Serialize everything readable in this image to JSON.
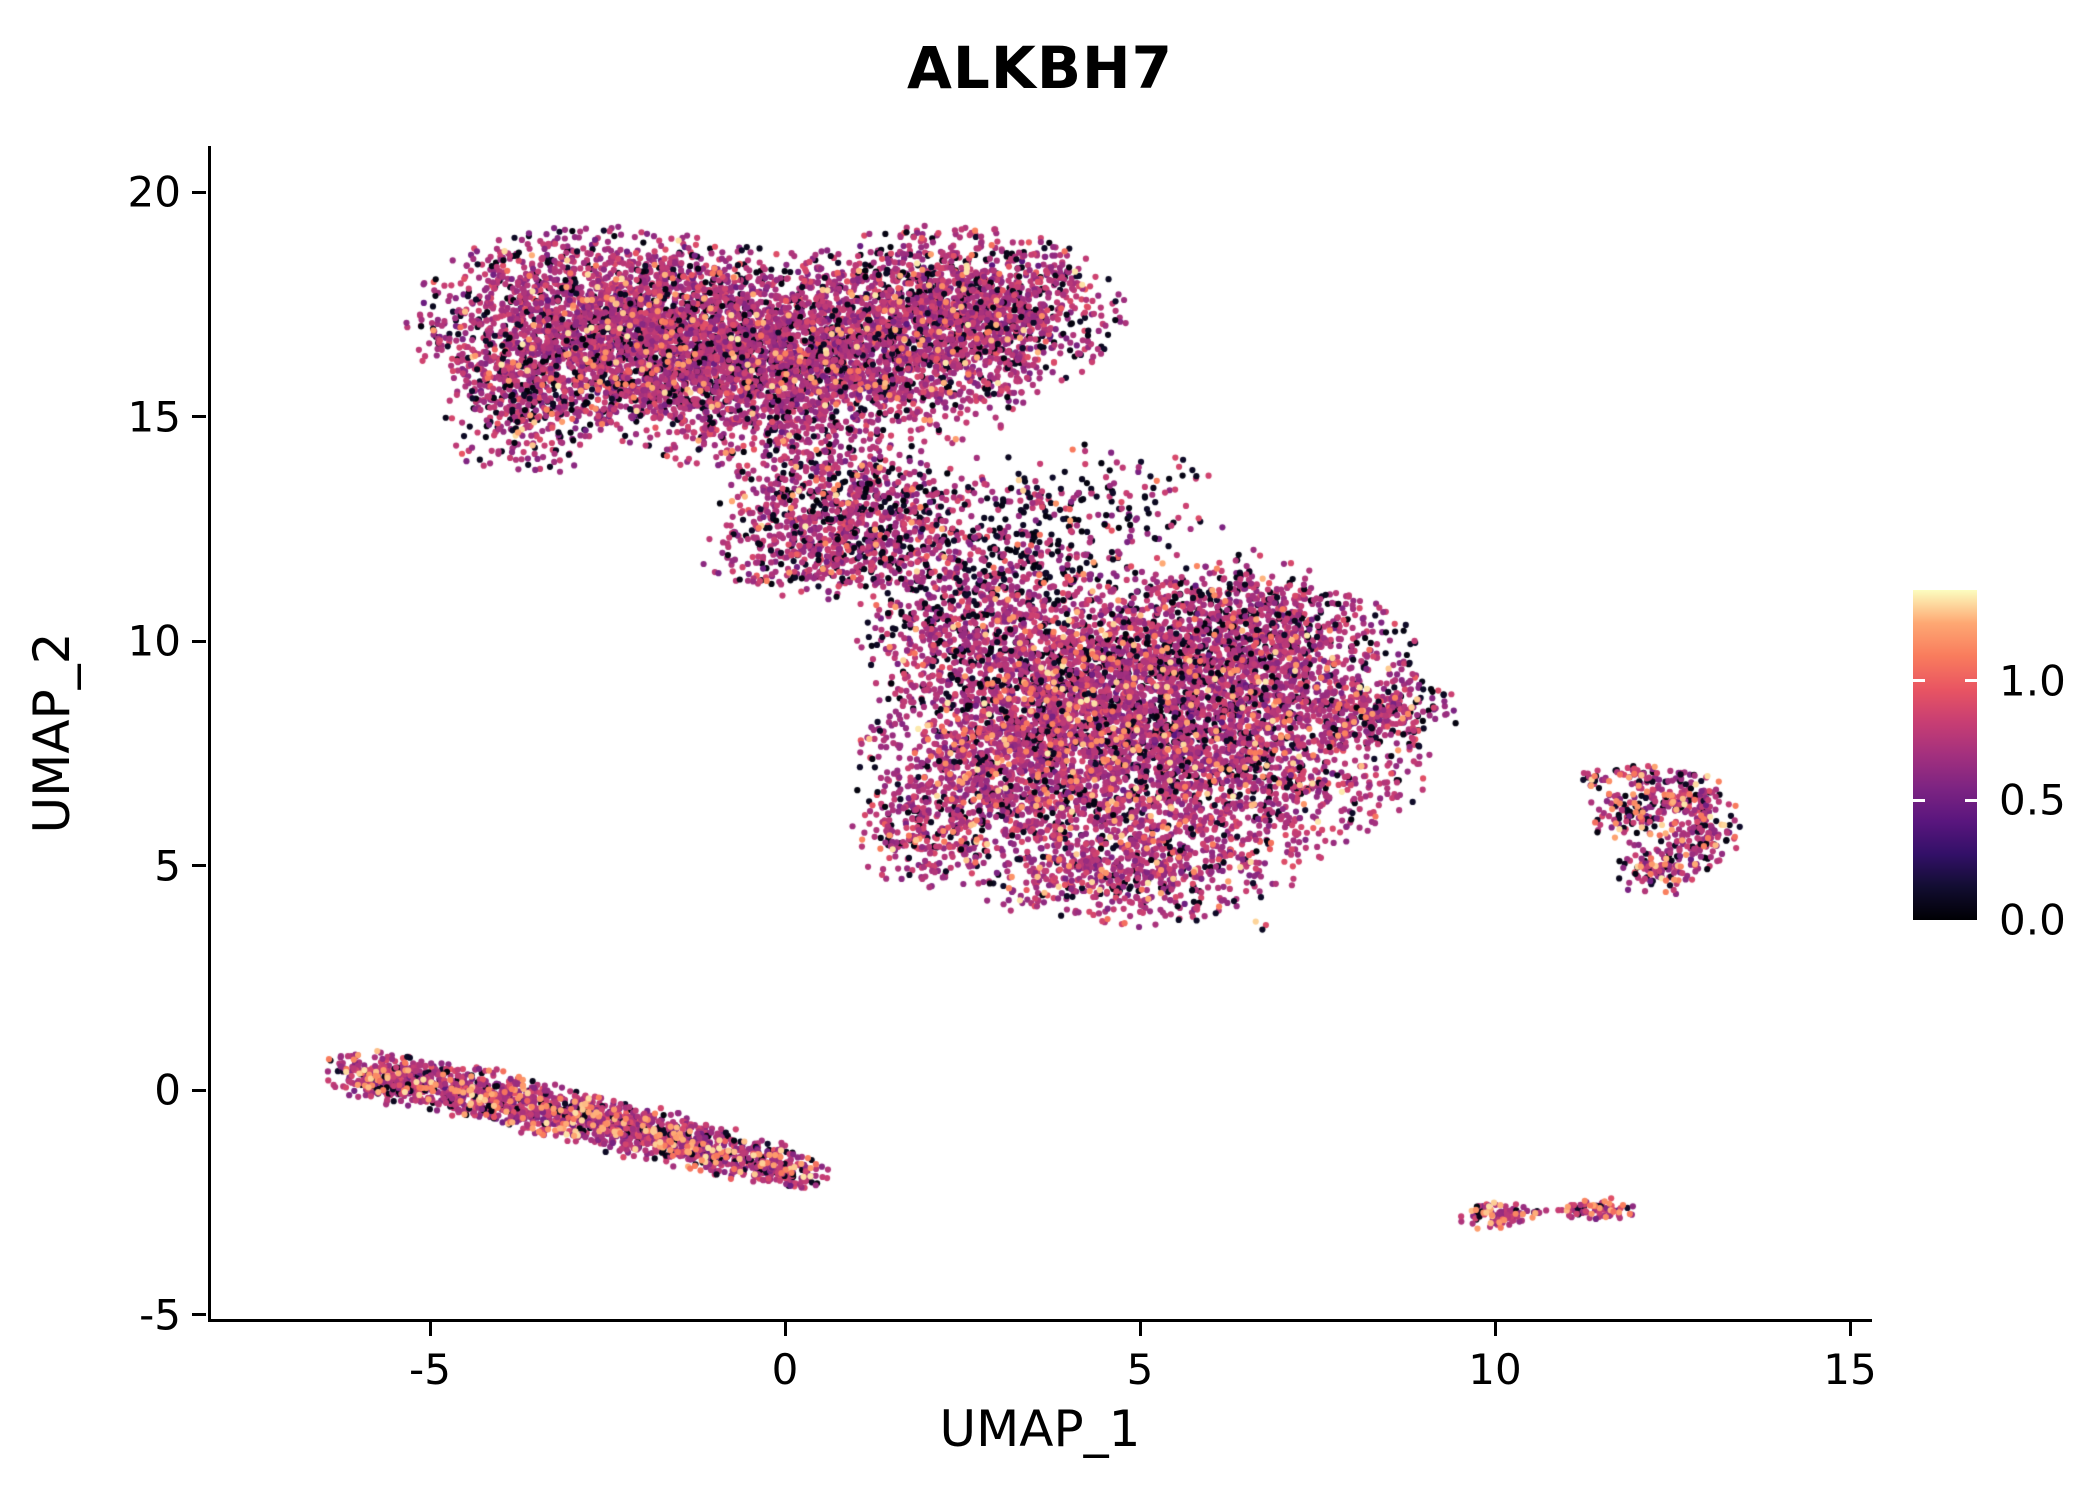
{
  "title": "ALKBH7",
  "axes": {
    "x_label": "UMAP_1",
    "y_label": "UMAP_2",
    "x_ticks": [
      {
        "value": -5,
        "label": "-5"
      },
      {
        "value": 0,
        "label": "0"
      },
      {
        "value": 5,
        "label": "5"
      },
      {
        "value": 10,
        "label": "10"
      },
      {
        "value": 15,
        "label": "15"
      }
    ],
    "y_ticks": [
      {
        "value": 20,
        "label": "20"
      },
      {
        "value": 15,
        "label": "15"
      },
      {
        "value": 10,
        "label": "10"
      },
      {
        "value": 5,
        "label": "5"
      },
      {
        "value": 0,
        "label": "0"
      },
      {
        "value": -5,
        "label": "-5"
      }
    ]
  },
  "colorbar": {
    "min": 0,
    "max": 1.38,
    "ticks": [
      {
        "value": 1.0,
        "label": "1.0",
        "mark": true
      },
      {
        "value": 0.5,
        "label": "0.5",
        "mark": true
      },
      {
        "value": 0.0,
        "label": "0.0",
        "mark": false
      }
    ]
  },
  "chart_data": {
    "type": "scatter",
    "title": "ALKBH7",
    "xlabel": "UMAP_1",
    "ylabel": "UMAP_2",
    "xlim": [
      -8.1,
      15.4
    ],
    "ylim": [
      -5.2,
      21.0
    ],
    "grid": false,
    "legend_position": "right-colorbar",
    "colormap": "magma",
    "color_domain": [
      0,
      1.38
    ],
    "colormap_stops": [
      [
        0.0,
        "#000004"
      ],
      [
        0.1,
        "#120d31"
      ],
      [
        0.2,
        "#331068"
      ],
      [
        0.3,
        "#5a167e"
      ],
      [
        0.4,
        "#7d2482"
      ],
      [
        0.5,
        "#a3307e"
      ],
      [
        0.6,
        "#c83e73"
      ],
      [
        0.7,
        "#e95562"
      ],
      [
        0.8,
        "#f97c5d"
      ],
      [
        0.9,
        "#fea873"
      ],
      [
        1.0,
        "#fcfdbf"
      ]
    ],
    "point_radius_px": 3.1,
    "value_model": {
      "black_range": [
        0.02,
        0.12
      ],
      "mid_mean": 0.74,
      "mid_sd": 0.1,
      "mid_clamp": [
        0.18,
        1.0
      ],
      "orange_range": [
        1.05,
        1.35
      ]
    },
    "clusters": [
      {
        "name": "top-blob-left-core",
        "cx": -2.6,
        "cy": 17.0,
        "sx": 1.25,
        "sy": 1.05,
        "n": 2400,
        "p_black": 0.16,
        "p_orange": 0.035
      },
      {
        "name": "top-blob-center",
        "cx": -0.7,
        "cy": 16.3,
        "sx": 1.15,
        "sy": 1.15,
        "n": 2000,
        "p_black": 0.16,
        "p_orange": 0.035
      },
      {
        "name": "top-blob-right-lobe",
        "cx": 2.3,
        "cy": 17.3,
        "sx": 1.15,
        "sy": 0.9,
        "n": 2000,
        "p_black": 0.17,
        "p_orange": 0.03
      },
      {
        "name": "top-blob-fill",
        "cx": 0.9,
        "cy": 15.9,
        "sx": 1.3,
        "sy": 0.8,
        "n": 800,
        "p_black": 0.15,
        "p_orange": 0.03
      },
      {
        "name": "top-blob-neck",
        "cx": 0.6,
        "cy": 13.3,
        "sx": 0.75,
        "sy": 0.85,
        "n": 600,
        "p_black": 0.22,
        "p_orange": 0.03
      },
      {
        "name": "top-blob-tongue",
        "cx": 0.8,
        "cy": 12.0,
        "sx": 0.95,
        "sy": 0.5,
        "n": 420,
        "p_black": 0.2,
        "p_orange": 0.03
      },
      {
        "name": "top-blob-left-edge",
        "cx": -3.7,
        "cy": 15.1,
        "sx": 0.5,
        "sy": 0.75,
        "n": 300,
        "p_black": 0.25,
        "p_orange": 0.04
      },
      {
        "name": "between-scatter-1",
        "cx": 2.2,
        "cy": 12.7,
        "sx": 0.9,
        "sy": 0.65,
        "n": 240,
        "p_black": 0.38,
        "p_orange": 0.02
      },
      {
        "name": "between-scatter-2",
        "cx": 4.4,
        "cy": 13.0,
        "sx": 0.85,
        "sy": 0.75,
        "n": 170,
        "p_black": 0.45,
        "p_orange": 0.02
      },
      {
        "name": "between-scatter-3",
        "cx": 3.4,
        "cy": 11.6,
        "sx": 0.7,
        "sy": 0.5,
        "n": 140,
        "p_black": 0.4,
        "p_orange": 0.02
      },
      {
        "name": "mid-blob-upper",
        "cx": 4.3,
        "cy": 9.3,
        "sx": 1.45,
        "sy": 1.05,
        "n": 2300,
        "p_black": 0.15,
        "p_orange": 0.05
      },
      {
        "name": "mid-blob-lower",
        "cx": 5.8,
        "cy": 7.3,
        "sx": 1.5,
        "sy": 1.15,
        "n": 2200,
        "p_black": 0.15,
        "p_orange": 0.05
      },
      {
        "name": "mid-blob-left",
        "cx": 3.0,
        "cy": 7.0,
        "sx": 0.95,
        "sy": 1.15,
        "n": 1100,
        "p_black": 0.14,
        "p_orange": 0.07
      },
      {
        "name": "mid-blob-right-upper",
        "cx": 6.9,
        "cy": 9.7,
        "sx": 0.95,
        "sy": 0.75,
        "n": 750,
        "p_black": 0.16,
        "p_orange": 0.04
      },
      {
        "name": "mid-blob-right-nub",
        "cx": 8.3,
        "cy": 8.4,
        "sx": 0.55,
        "sy": 0.45,
        "n": 300,
        "p_black": 0.2,
        "p_orange": 0.04
      },
      {
        "name": "mid-blob-bottom",
        "cx": 4.9,
        "cy": 4.8,
        "sx": 1.1,
        "sy": 0.55,
        "n": 550,
        "p_black": 0.13,
        "p_orange": 0.08
      },
      {
        "name": "mid-blob-topleft-edge",
        "cx": 2.3,
        "cy": 10.6,
        "sx": 0.65,
        "sy": 0.75,
        "n": 300,
        "p_black": 0.3,
        "p_orange": 0.03
      },
      {
        "name": "mid-blob-top-edge",
        "cx": 6.3,
        "cy": 10.9,
        "sx": 0.8,
        "sy": 0.55,
        "n": 260,
        "p_black": 0.3,
        "p_orange": 0.03
      },
      {
        "name": "mid-blob-left-spur",
        "cx": 1.9,
        "cy": 5.6,
        "sx": 0.45,
        "sy": 0.6,
        "n": 180,
        "p_black": 0.14,
        "p_orange": 0.08
      },
      {
        "name": "mid-blob-outlier",
        "cx": 6.7,
        "cy": 3.7,
        "sx": 0.07,
        "sy": 0.06,
        "n": 3,
        "p_black": 0.1,
        "p_orange": 0.5
      },
      {
        "name": "band-seg-1",
        "cx": -5.6,
        "cy": 0.25,
        "sx": 0.5,
        "sy": 0.27,
        "n": 320,
        "rot": -17,
        "p_black": 0.12,
        "p_orange": 0.1
      },
      {
        "name": "band-seg-2",
        "cx": -4.4,
        "cy": -0.05,
        "sx": 0.6,
        "sy": 0.28,
        "n": 380,
        "rot": -17,
        "p_black": 0.12,
        "p_orange": 0.11
      },
      {
        "name": "band-seg-3",
        "cx": -3.2,
        "cy": -0.5,
        "sx": 0.6,
        "sy": 0.28,
        "n": 380,
        "rot": -17,
        "p_black": 0.12,
        "p_orange": 0.12
      },
      {
        "name": "band-seg-4",
        "cx": -2.0,
        "cy": -0.95,
        "sx": 0.6,
        "sy": 0.28,
        "n": 350,
        "rot": -17,
        "p_black": 0.12,
        "p_orange": 0.12
      },
      {
        "name": "band-seg-5",
        "cx": -0.9,
        "cy": -1.4,
        "sx": 0.6,
        "sy": 0.26,
        "n": 300,
        "rot": -17,
        "p_black": 0.12,
        "p_orange": 0.12
      },
      {
        "name": "band-seg-6",
        "cx": -0.05,
        "cy": -1.75,
        "sx": 0.33,
        "sy": 0.2,
        "n": 150,
        "rot": -17,
        "p_black": 0.12,
        "p_orange": 0.12
      },
      {
        "name": "right-cluster-top",
        "cx": 12.55,
        "cy": 6.55,
        "sx": 0.42,
        "sy": 0.33,
        "n": 150,
        "p_black": 0.18,
        "p_orange": 0.16
      },
      {
        "name": "right-cluster-east",
        "cx": 12.9,
        "cy": 5.7,
        "sx": 0.28,
        "sy": 0.45,
        "n": 130,
        "p_black": 0.18,
        "p_orange": 0.16
      },
      {
        "name": "right-cluster-south",
        "cx": 12.35,
        "cy": 4.95,
        "sx": 0.33,
        "sy": 0.3,
        "n": 110,
        "p_black": 0.18,
        "p_orange": 0.16
      },
      {
        "name": "right-cluster-west",
        "cx": 11.95,
        "cy": 6.1,
        "sx": 0.3,
        "sy": 0.33,
        "n": 70,
        "p_black": 0.3,
        "p_orange": 0.12
      },
      {
        "name": "right-cluster-spur-1",
        "cx": 11.4,
        "cy": 6.9,
        "sx": 0.14,
        "sy": 0.1,
        "n": 22,
        "p_black": 0.25,
        "p_orange": 0.15
      },
      {
        "name": "right-cluster-spur-2",
        "cx": 12.05,
        "cy": 7.05,
        "sx": 0.2,
        "sy": 0.12,
        "n": 30,
        "p_black": 0.22,
        "p_orange": 0.15
      },
      {
        "name": "tiny-1",
        "cx": 10.0,
        "cy": -2.78,
        "sx": 0.26,
        "sy": 0.16,
        "n": 85,
        "p_black": 0.1,
        "p_orange": 0.25
      },
      {
        "name": "tiny-2",
        "cx": 10.65,
        "cy": -2.72,
        "sx": 0.07,
        "sy": 0.05,
        "n": 8,
        "p_black": 0.1,
        "p_orange": 0.2
      },
      {
        "name": "tiny-3",
        "cx": 11.05,
        "cy": -2.68,
        "sx": 0.1,
        "sy": 0.07,
        "n": 12,
        "p_black": 0.1,
        "p_orange": 0.2
      },
      {
        "name": "tiny-4",
        "cx": 11.5,
        "cy": -2.62,
        "sx": 0.26,
        "sy": 0.12,
        "n": 65,
        "p_black": 0.12,
        "p_orange": 0.22
      }
    ]
  }
}
